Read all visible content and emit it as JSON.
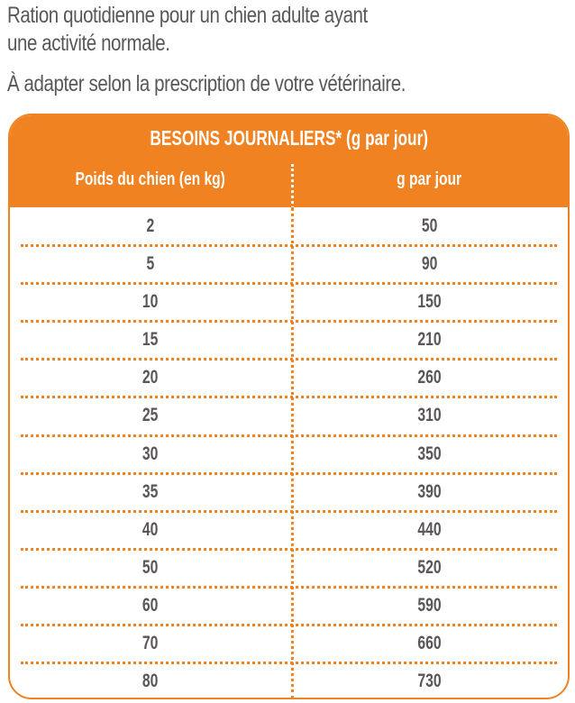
{
  "intro": {
    "line1": "Ration quotidienne pour un chien adulte ayant",
    "line2": "une activité normale.",
    "line3": "À adapter selon la prescription de votre vétérinaire."
  },
  "table": {
    "title": "BESOINS JOURNALIERS* (g par jour)",
    "headers": [
      "Poids du chien (en kg)",
      "g par jour"
    ],
    "rows": [
      [
        "2",
        "50"
      ],
      [
        "5",
        "90"
      ],
      [
        "10",
        "150"
      ],
      [
        "15",
        "210"
      ],
      [
        "20",
        "260"
      ],
      [
        "25",
        "310"
      ],
      [
        "30",
        "350"
      ],
      [
        "35",
        "390"
      ],
      [
        "40",
        "440"
      ],
      [
        "50",
        "520"
      ],
      [
        "60",
        "590"
      ],
      [
        "70",
        "660"
      ],
      [
        "80",
        "730"
      ]
    ]
  },
  "colors": {
    "accent": "#f08222",
    "text": "#5b5658"
  }
}
